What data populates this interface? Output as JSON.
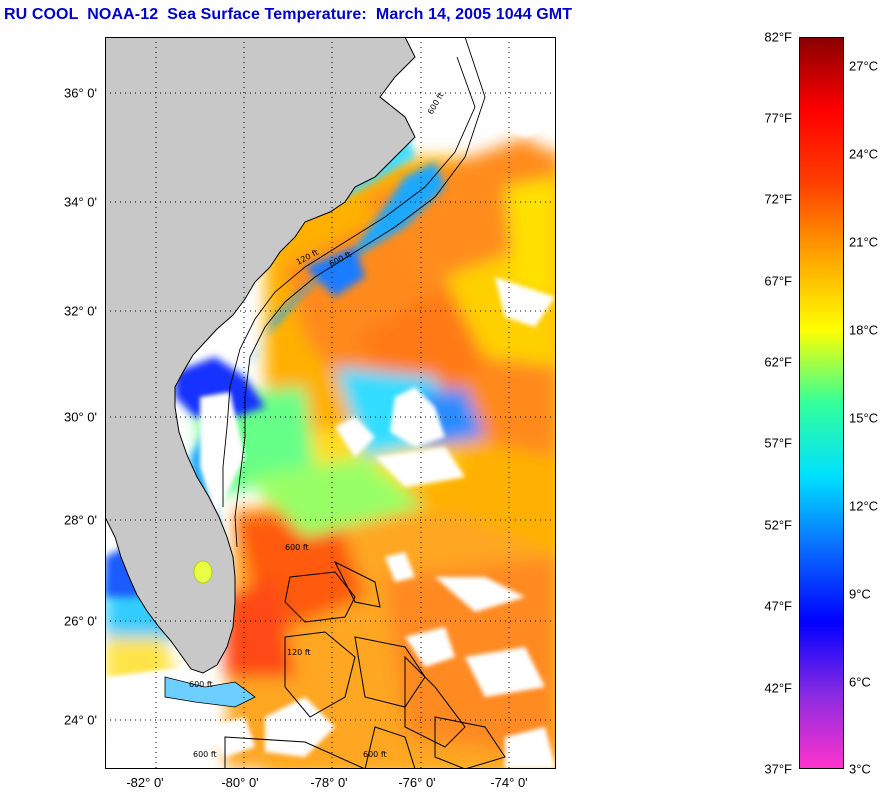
{
  "title": "RU COOL  NOAA-12  Sea Surface Temperature:  March 14, 2005 1044 GMT",
  "map": {
    "lat_labels": [
      "36° 0'",
      "34° 0'",
      "32° 0'",
      "30° 0'",
      "28° 0'",
      "26° 0'",
      "24° 0'"
    ],
    "lat_values": [
      36,
      34,
      32,
      30,
      28,
      26,
      24
    ],
    "lon_labels": [
      "-82° 0'",
      "-80° 0'",
      "-78° 0'",
      "-76° 0'",
      "-74° 0'"
    ],
    "lon_values": [
      -82,
      -80,
      -78,
      -76,
      -74
    ],
    "lat_range": [
      23,
      37
    ],
    "lon_range": [
      -83.2,
      -73.0
    ],
    "contour_labels": [
      "600 ft",
      "120 ft",
      "600 ft",
      "600 ft",
      "600 ft",
      "120 ft",
      "600 ft",
      "600 ft"
    ],
    "grid": "dotted",
    "colors": {
      "land": "#c8c8c8",
      "cloud": "#ffffff",
      "warm_core": "#ff7a1a",
      "shelf_cold": "#1aa8ff"
    }
  },
  "colorbar": {
    "fahrenheit_labels": [
      "82°F",
      "77°F",
      "72°F",
      "67°F",
      "62°F",
      "57°F",
      "52°F",
      "47°F",
      "42°F",
      "37°F"
    ],
    "fahrenheit_values": [
      82,
      77,
      72,
      67,
      62,
      57,
      52,
      47,
      42,
      37
    ],
    "celsius_labels": [
      "27°C",
      "24°C",
      "21°C",
      "18°C",
      "15°C",
      "12°C",
      "9°C",
      "6°C",
      "3°C"
    ],
    "celsius_values": [
      27,
      24,
      21,
      18,
      15,
      12,
      9,
      6,
      3
    ],
    "range_f": [
      37,
      82
    ],
    "stops": [
      "#ff33cc",
      "#8a2be2",
      "#0000ff",
      "#0a6bff",
      "#00e0ff",
      "#33ff99",
      "#ffff00",
      "#ffa500",
      "#ff4000",
      "#ff0000",
      "#8b0000"
    ]
  }
}
